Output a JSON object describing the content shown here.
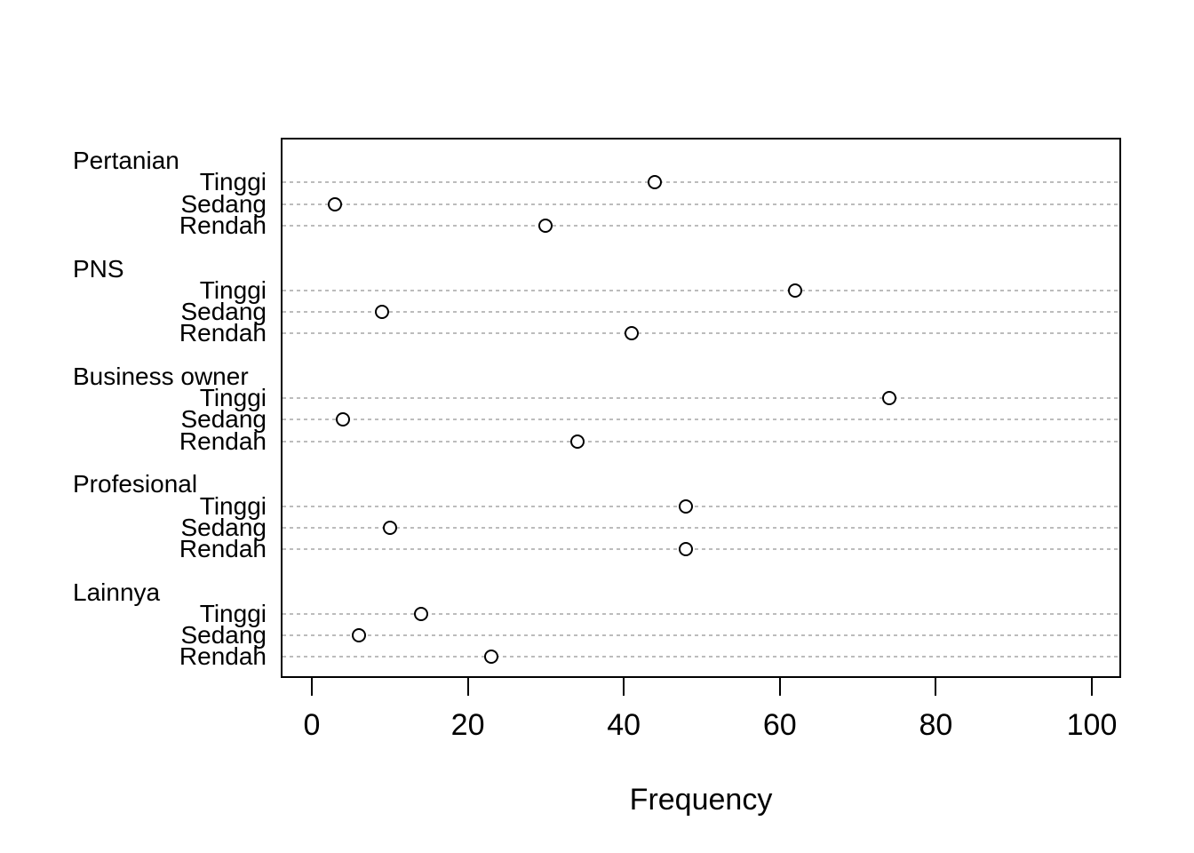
{
  "chart_data": {
    "type": "scatter",
    "subtype": "cleveland-dotchart-grouped",
    "title": "",
    "xlabel": "Frequency",
    "ylabel": "",
    "xlim": [
      0,
      100
    ],
    "x_ticks": [
      0,
      20,
      40,
      60,
      80,
      100
    ],
    "grid": "horizontal dotted lines, one per item row",
    "legend": null,
    "marker": "open circle (black stroke, white fill)",
    "colors": {
      "marker_stroke": "#000000",
      "marker_fill": "#ffffff",
      "gridline": "#bcbcbc",
      "frame": "#000000",
      "text": "#000000",
      "background": "#ffffff"
    },
    "levels": [
      "Tinggi",
      "Sedang",
      "Rendah"
    ],
    "groups": [
      {
        "label": "Pertanian",
        "items": [
          {
            "label": "Tinggi",
            "value": 44
          },
          {
            "label": "Sedang",
            "value": 3
          },
          {
            "label": "Rendah",
            "value": 30
          }
        ]
      },
      {
        "label": "PNS",
        "items": [
          {
            "label": "Tinggi",
            "value": 62
          },
          {
            "label": "Sedang",
            "value": 9
          },
          {
            "label": "Rendah",
            "value": 41
          }
        ]
      },
      {
        "label": "Business owner",
        "items": [
          {
            "label": "Tinggi",
            "value": 74
          },
          {
            "label": "Sedang",
            "value": 4
          },
          {
            "label": "Rendah",
            "value": 34
          }
        ]
      },
      {
        "label": "Profesional",
        "items": [
          {
            "label": "Tinggi",
            "value": 48
          },
          {
            "label": "Sedang",
            "value": 10
          },
          {
            "label": "Rendah",
            "value": 48
          }
        ]
      },
      {
        "label": "Lainnya",
        "items": [
          {
            "label": "Tinggi",
            "value": 14
          },
          {
            "label": "Sedang",
            "value": 6
          },
          {
            "label": "Rendah",
            "value": 23
          }
        ]
      }
    ]
  }
}
